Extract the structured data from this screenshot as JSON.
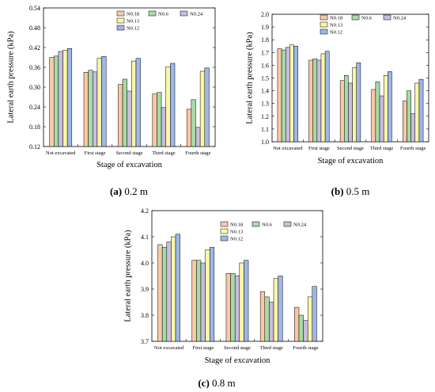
{
  "chart_data": [
    {
      "type": "bar",
      "caption_letter": "(a)",
      "caption_text": " 0.2 m",
      "categories": [
        "Not excavated",
        "First stage",
        "Second stage",
        "Third stage",
        "Fourth stage"
      ],
      "series": [
        {
          "name": "N0.18",
          "color": "#f8c9a6",
          "values": [
            0.39,
            0.345,
            0.308,
            0.279,
            0.233
          ]
        },
        {
          "name": "N0.6",
          "color": "#a6dba6",
          "values": [
            0.394,
            0.351,
            0.324,
            0.284,
            0.262
          ]
        },
        {
          "name": "N0.24",
          "color": "#c9bde0",
          "values": [
            0.408,
            0.346,
            0.288,
            0.238,
            0.178
          ]
        },
        {
          "name": "N0.13",
          "color": "#fbf6a8",
          "values": [
            0.412,
            0.387,
            0.379,
            0.362,
            0.348
          ]
        },
        {
          "name": "N0.12",
          "color": "#9db8e8",
          "values": [
            0.417,
            0.393,
            0.387,
            0.372,
            0.358
          ]
        }
      ],
      "xlabel": "Stage of excavation",
      "ylabel": "Lateral earth pressure (kPa)",
      "ylim": [
        0.12,
        0.54
      ],
      "yticks": [
        "0.12",
        "0.18",
        "0.24",
        "0.30",
        "0.36",
        "0.42",
        "0.48",
        "0.54"
      ],
      "legend": "top-right"
    },
    {
      "type": "bar",
      "caption_letter": "(b)",
      "caption_text": " 0.5 m",
      "categories": [
        "Not excavated",
        "First stage",
        "Second stage",
        "Third stage",
        "Fourth stage"
      ],
      "series": [
        {
          "name": "N0.18",
          "color": "#f8c9a6",
          "values": [
            1.73,
            1.64,
            1.48,
            1.41,
            1.32
          ]
        },
        {
          "name": "N0.6",
          "color": "#a6dba6",
          "values": [
            1.72,
            1.65,
            1.52,
            1.47,
            1.4
          ]
        },
        {
          "name": "N0.24",
          "color": "#c9bde0",
          "values": [
            1.74,
            1.64,
            1.46,
            1.36,
            1.22
          ]
        },
        {
          "name": "N0.13",
          "color": "#fbf6a8",
          "values": [
            1.76,
            1.69,
            1.58,
            1.52,
            1.46
          ]
        },
        {
          "name": "N0.12",
          "color": "#9db8e8",
          "values": [
            1.75,
            1.71,
            1.62,
            1.55,
            1.49
          ]
        }
      ],
      "xlabel": "Stage of excavation",
      "ylabel": "Lateral earth pressure (kPa)",
      "ylim": [
        1.0,
        2.0
      ],
      "yticks": [
        "1.0",
        "1.1",
        "1.2",
        "1.3",
        "1.4",
        "1.5",
        "1.6",
        "1.7",
        "1.8",
        "1.9",
        "2.0"
      ],
      "legend": "top-right"
    },
    {
      "type": "bar",
      "caption_letter": "(c)",
      "caption_text": " 0.8 m",
      "categories": [
        "Not excavated",
        "First stage",
        "Second stage",
        "Third stage",
        "Fourth stage"
      ],
      "series": [
        {
          "name": "N0.18",
          "color": "#f8c9a6",
          "values": [
            4.07,
            4.01,
            3.96,
            3.89,
            3.83
          ]
        },
        {
          "name": "N0.6",
          "color": "#a6dba6",
          "values": [
            4.06,
            4.01,
            3.96,
            3.87,
            3.8
          ]
        },
        {
          "name": "N0.24",
          "color": "#c9bde0",
          "values": [
            4.08,
            4.0,
            3.95,
            3.85,
            3.78
          ]
        },
        {
          "name": "N0.13",
          "color": "#fbf6a8",
          "values": [
            4.1,
            4.05,
            4.0,
            3.94,
            3.87
          ]
        },
        {
          "name": "N0.12",
          "color": "#9db8e8",
          "values": [
            4.11,
            4.06,
            4.01,
            3.95,
            3.91
          ]
        }
      ],
      "xlabel": "Stage of excavation",
      "ylabel": "Lateral earth pressure (kPa)",
      "ylim": [
        3.7,
        4.2
      ],
      "yticks": [
        "3.7",
        "3.8",
        "3.9",
        "4.0",
        "4.1",
        "4.2"
      ],
      "legend": "top-right"
    }
  ]
}
